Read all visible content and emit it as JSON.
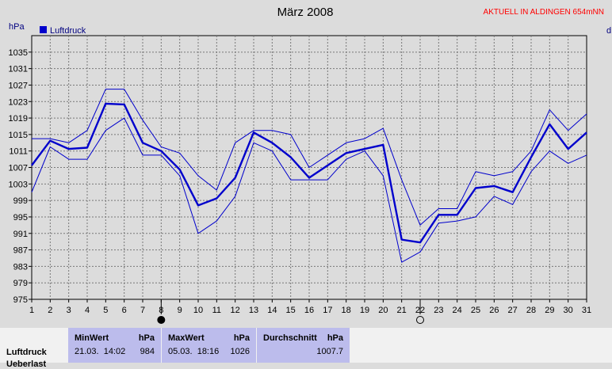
{
  "header": {
    "title": "März 2008",
    "station": "AKTUELL IN ALDINGEN 654mNN",
    "station_color": "#ff0000"
  },
  "chart_data": {
    "type": "line",
    "title": "März 2008",
    "ylabel": "hPa",
    "ylabel_right": "d",
    "ylim": [
      975,
      1039
    ],
    "yticks": [
      975,
      979,
      983,
      987,
      991,
      995,
      999,
      1003,
      1007,
      1011,
      1015,
      1019,
      1023,
      1027,
      1031,
      1035
    ],
    "x": [
      1,
      2,
      3,
      4,
      5,
      6,
      7,
      8,
      9,
      10,
      11,
      12,
      13,
      14,
      15,
      16,
      17,
      18,
      19,
      20,
      21,
      22,
      23,
      24,
      25,
      26,
      27,
      28,
      29,
      30,
      31
    ],
    "grid": true,
    "legend": "top-left",
    "series": [
      {
        "name": "Luftdruck",
        "role": "mean",
        "color": "#0000cc",
        "values": [
          1007.5,
          1013.5,
          1011.5,
          1011.8,
          1022.5,
          1022.3,
          1013,
          1011,
          1006.5,
          997.8,
          999.5,
          1004.5,
          1015.5,
          1013,
          1009.5,
          1004.5,
          1007.5,
          1010.5,
          1011.5,
          1012.5,
          989.5,
          988.8,
          995.5,
          995.5,
          1002,
          1002.5,
          1001,
          1009.5,
          1017.5,
          1011.5,
          1015.5
        ]
      },
      {
        "role": "max",
        "color": "#0000cc",
        "values": [
          1014,
          1014,
          1013,
          1016,
          1026,
          1026,
          1018.5,
          1012,
          1010.5,
          1005,
          1001.5,
          1013,
          1016,
          1016,
          1015,
          1007,
          1010,
          1013,
          1014,
          1016.5,
          1004,
          993,
          997,
          997,
          1006,
          1005,
          1006,
          1011,
          1021,
          1016,
          1020
        ]
      },
      {
        "role": "min",
        "color": "#0000cc",
        "values": [
          1001,
          1012,
          1009,
          1009,
          1016,
          1019,
          1010,
          1010,
          1005,
          991,
          994,
          1000,
          1013,
          1011,
          1004,
          1004,
          1004,
          1009,
          1011,
          1005,
          984,
          986.5,
          993.5,
          994,
          995,
          1000,
          998,
          1006,
          1011,
          1008,
          1010
        ]
      }
    ],
    "moon_markers": [
      {
        "day": 8,
        "phase": "new"
      },
      {
        "day": 22,
        "phase": "full"
      }
    ]
  },
  "summary": {
    "row_label": "Luftdruck",
    "row_label_2": "Ueberlast",
    "min": {
      "header": "MinWert",
      "unit": "hPa",
      "time": "21.03.  14:02",
      "value": "984"
    },
    "max": {
      "header": "MaxWert",
      "unit": "hPa",
      "time": "05.03.  18:16",
      "value": "1026"
    },
    "avg": {
      "header": "Durchschnitt",
      "unit": "hPa",
      "value": "1007.7"
    }
  }
}
